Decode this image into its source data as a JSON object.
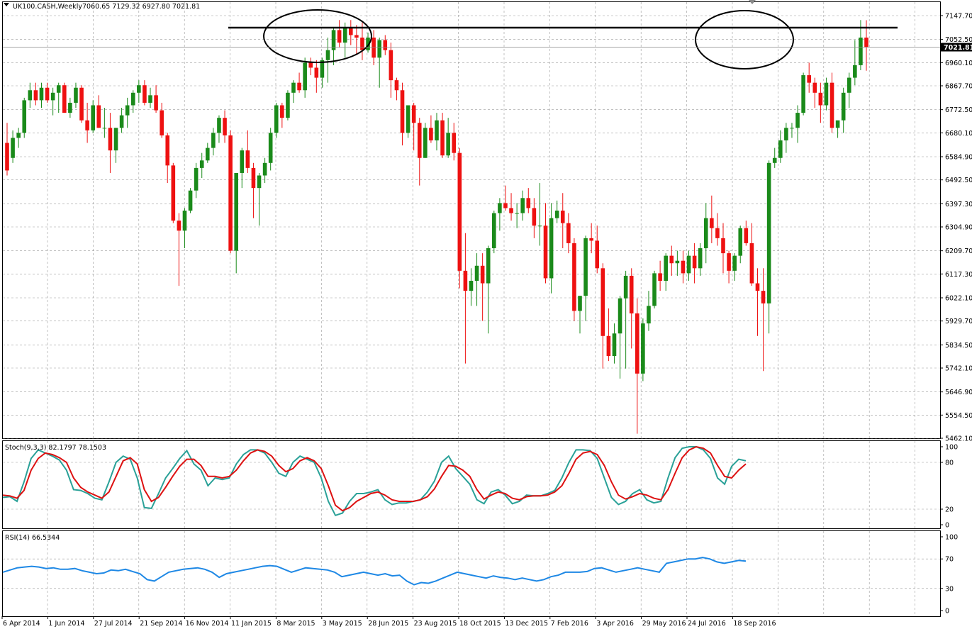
{
  "header": {
    "symbol": "UK100.CASH,Weekly",
    "ohlc": "7060.65 7129.32 6927.80 7021.81",
    "stoch_label": "Stoch(9,3,3) 82.1797 78.1503",
    "rsi_label": "RSI(14) 66.5344",
    "last_price_tag": "7021.81"
  },
  "colors": {
    "bull": "#1a8a1a",
    "bear": "#ee1111",
    "stoch_main": "#2aa198",
    "stoch_signal": "#dd1111",
    "rsi": "#1e88e5",
    "grid": "#9a9a9a"
  },
  "chart_data": [
    {
      "type": "candlestick",
      "title": "UK100.CASH,Weekly",
      "ylim": [
        5462.1,
        7147.7
      ],
      "y_ticks": [
        "7147.70",
        "7052.50",
        "6960.10",
        "6867.70",
        "6772.50",
        "6680.10",
        "6584.90",
        "6492.50",
        "6397.30",
        "6304.90",
        "6209.70",
        "6117.30",
        "6022.10",
        "5929.70",
        "5834.50",
        "5742.10",
        "5646.90",
        "5554.50",
        "5462.10"
      ],
      "x_ticks": [
        "6 Apr 2014",
        "1 Jun 2014",
        "27 Jul 2014",
        "21 Sep 2014",
        "16 Nov 2014",
        "11 Jan 2015",
        "8 Mar 2015",
        "3 May 2015",
        "28 Jun 2015",
        "23 Aug 2015",
        "18 Oct 2015",
        "13 Dec 2015",
        "7 Feb 2016",
        "3 Apr 2016",
        "29 May 2016",
        "24 Jul 2016",
        "18 Sep 2016"
      ],
      "current_price": 7021.81,
      "resistance_level": 7100,
      "candles": [
        [
          6640,
          6720,
          6510,
          6530
        ],
        [
          6580,
          6690,
          6560,
          6660
        ],
        [
          6660,
          6700,
          6620,
          6680
        ],
        [
          6680,
          6820,
          6660,
          6810
        ],
        [
          6810,
          6880,
          6780,
          6850
        ],
        [
          6850,
          6880,
          6790,
          6810
        ],
        [
          6810,
          6880,
          6780,
          6860
        ],
        [
          6860,
          6880,
          6800,
          6810
        ],
        [
          6810,
          6860,
          6750,
          6840
        ],
        [
          6840,
          6880,
          6760,
          6870
        ],
        [
          6870,
          6880,
          6760,
          6760
        ],
        [
          6760,
          6820,
          6740,
          6800
        ],
        [
          6800,
          6880,
          6780,
          6860
        ],
        [
          6860,
          6870,
          6720,
          6730
        ],
        [
          6730,
          6800,
          6640,
          6690
        ],
        [
          6690,
          6810,
          6680,
          6790
        ],
        [
          6790,
          6830,
          6700,
          6700
        ],
        [
          6700,
          6780,
          6660,
          6700
        ],
        [
          6700,
          6760,
          6520,
          6610
        ],
        [
          6610,
          6700,
          6560,
          6700
        ],
        [
          6700,
          6780,
          6680,
          6750
        ],
        [
          6750,
          6820,
          6700,
          6790
        ],
        [
          6790,
          6850,
          6760,
          6840
        ],
        [
          6840,
          6890,
          6800,
          6870
        ],
        [
          6870,
          6890,
          6790,
          6800
        ],
        [
          6800,
          6860,
          6780,
          6830
        ],
        [
          6830,
          6870,
          6760,
          6770
        ],
        [
          6770,
          6800,
          6660,
          6670
        ],
        [
          6670,
          6680,
          6480,
          6550
        ],
        [
          6550,
          6560,
          6320,
          6330
        ],
        [
          6330,
          6360,
          6070,
          6290
        ],
        [
          6290,
          6380,
          6220,
          6370
        ],
        [
          6370,
          6460,
          6360,
          6450
        ],
        [
          6450,
          6560,
          6420,
          6540
        ],
        [
          6540,
          6600,
          6500,
          6570
        ],
        [
          6570,
          6640,
          6560,
          6620
        ],
        [
          6620,
          6700,
          6590,
          6680
        ],
        [
          6680,
          6750,
          6640,
          6740
        ],
        [
          6740,
          6770,
          6640,
          6670
        ],
        [
          6670,
          6690,
          6200,
          6210
        ],
        [
          6210,
          6520,
          6120,
          6520
        ],
        [
          6520,
          6620,
          6460,
          6610
        ],
        [
          6610,
          6690,
          6520,
          6540
        ],
        [
          6540,
          6560,
          6340,
          6460
        ],
        [
          6460,
          6520,
          6310,
          6510
        ],
        [
          6510,
          6580,
          6480,
          6560
        ],
        [
          6560,
          6700,
          6530,
          6680
        ],
        [
          6680,
          6800,
          6660,
          6790
        ],
        [
          6790,
          6800,
          6700,
          6740
        ],
        [
          6740,
          6850,
          6730,
          6840
        ],
        [
          6840,
          6890,
          6800,
          6880
        ],
        [
          6880,
          6920,
          6840,
          6850
        ],
        [
          6850,
          6980,
          6820,
          6960
        ],
        [
          6960,
          6980,
          6910,
          6940
        ],
        [
          6940,
          6970,
          6840,
          6900
        ],
        [
          6900,
          6980,
          6860,
          6970
        ],
        [
          6970,
          7060,
          6880,
          7010
        ],
        [
          7010,
          7100,
          6950,
          7090
        ],
        [
          7090,
          7130,
          7020,
          7040
        ],
        [
          7040,
          7120,
          6980,
          7100
        ],
        [
          7100,
          7130,
          7030,
          7070
        ],
        [
          7070,
          7110,
          6990,
          7060
        ],
        [
          7060,
          7120,
          6970,
          7010
        ],
        [
          7010,
          7080,
          7000,
          7060
        ],
        [
          7060,
          7090,
          6950,
          6980
        ],
        [
          6980,
          7060,
          6860,
          7050
        ],
        [
          7050,
          7070,
          6990,
          7010
        ],
        [
          7010,
          7040,
          6820,
          6890
        ],
        [
          6890,
          6900,
          6810,
          6850
        ],
        [
          6850,
          6880,
          6630,
          6680
        ],
        [
          6680,
          6790,
          6660,
          6790
        ],
        [
          6790,
          6800,
          6610,
          6720
        ],
        [
          6720,
          6740,
          6470,
          6580
        ],
        [
          6580,
          6720,
          6580,
          6700
        ],
        [
          6700,
          6750,
          6640,
          6650
        ],
        [
          6650,
          6760,
          6610,
          6730
        ],
        [
          6730,
          6760,
          6580,
          6590
        ],
        [
          6590,
          6740,
          6580,
          6680
        ],
        [
          6680,
          6720,
          6570,
          6600
        ],
        [
          6600,
          6620,
          6060,
          6130
        ],
        [
          6130,
          6280,
          5760,
          6050
        ],
        [
          6050,
          6140,
          5990,
          6090
        ],
        [
          6090,
          6200,
          5990,
          6150
        ],
        [
          6150,
          6200,
          5930,
          6080
        ],
        [
          6080,
          6230,
          5880,
          6220
        ],
        [
          6220,
          6370,
          6200,
          6360
        ],
        [
          6360,
          6420,
          6290,
          6400
        ],
        [
          6400,
          6470,
          6370,
          6380
        ],
        [
          6380,
          6440,
          6330,
          6360
        ],
        [
          6360,
          6400,
          6300,
          6360
        ],
        [
          6360,
          6450,
          6330,
          6420
        ],
        [
          6420,
          6460,
          6360,
          6380
        ],
        [
          6380,
          6420,
          6260,
          6310
        ],
        [
          6310,
          6480,
          6230,
          6310
        ],
        [
          6310,
          6400,
          6080,
          6100
        ],
        [
          6100,
          6400,
          6040,
          6340
        ],
        [
          6340,
          6410,
          6320,
          6370
        ],
        [
          6370,
          6440,
          6220,
          6320
        ],
        [
          6320,
          6360,
          6200,
          6240
        ],
        [
          6240,
          6260,
          5930,
          5970
        ],
        [
          5970,
          6030,
          5880,
          6030
        ],
        [
          6030,
          6270,
          5930,
          6260
        ],
        [
          6260,
          6320,
          6200,
          6250
        ],
        [
          6250,
          6310,
          6120,
          6140
        ],
        [
          6140,
          6160,
          5740,
          5870
        ],
        [
          5870,
          5980,
          5770,
          5790
        ],
        [
          5790,
          5920,
          5760,
          5880
        ],
        [
          5880,
          6030,
          5700,
          6020
        ],
        [
          6020,
          6130,
          5740,
          6110
        ],
        [
          6110,
          6140,
          5820,
          5960
        ],
        [
          5960,
          6020,
          5480,
          5720
        ],
        [
          5720,
          5940,
          5690,
          5920
        ],
        [
          5920,
          6050,
          5890,
          5990
        ],
        [
          5990,
          6130,
          5980,
          6120
        ],
        [
          6120,
          6170,
          6050,
          6090
        ],
        [
          6090,
          6200,
          6050,
          6190
        ],
        [
          6190,
          6230,
          6110,
          6160
        ],
        [
          6160,
          6210,
          6110,
          6170
        ],
        [
          6170,
          6210,
          6080,
          6120
        ],
        [
          6120,
          6210,
          6090,
          6190
        ],
        [
          6190,
          6240,
          6080,
          6140
        ],
        [
          6140,
          6240,
          6110,
          6220
        ],
        [
          6220,
          6400,
          6160,
          6340
        ],
        [
          6340,
          6430,
          6240,
          6300
        ],
        [
          6300,
          6360,
          6230,
          6260
        ],
        [
          6260,
          6320,
          6120,
          6200
        ],
        [
          6200,
          6210,
          6080,
          6130
        ],
        [
          6130,
          6200,
          6090,
          6190
        ],
        [
          6190,
          6310,
          6160,
          6300
        ],
        [
          6300,
          6330,
          6230,
          6240
        ],
        [
          6240,
          6320,
          6070,
          6080
        ],
        [
          6080,
          6140,
          5870,
          6050
        ],
        [
          6050,
          6140,
          5730,
          6000
        ],
        [
          6000,
          6570,
          5880,
          6560
        ],
        [
          6560,
          6620,
          6540,
          6580
        ],
        [
          6580,
          6690,
          6560,
          6650
        ],
        [
          6650,
          6720,
          6600,
          6700
        ],
        [
          6700,
          6720,
          6660,
          6700
        ],
        [
          6700,
          6790,
          6640,
          6760
        ],
        [
          6760,
          6920,
          6750,
          6910
        ],
        [
          6910,
          6960,
          6840,
          6880
        ],
        [
          6880,
          6900,
          6780,
          6840
        ],
        [
          6840,
          6880,
          6720,
          6790
        ],
        [
          6790,
          6900,
          6770,
          6880
        ],
        [
          6880,
          6920,
          6680,
          6700
        ],
        [
          6700,
          6720,
          6660,
          6730
        ],
        [
          6730,
          6860,
          6680,
          6840
        ],
        [
          6840,
          6920,
          6780,
          6900
        ],
        [
          6900,
          7050,
          6870,
          6950
        ],
        [
          6950,
          7130,
          6930,
          7060
        ],
        [
          7060,
          7129.32,
          6927.8,
          7021.81
        ]
      ]
    },
    {
      "type": "line",
      "title": "Stoch(9,3,3) 82.1797 78.1503",
      "ylim": [
        0,
        100
      ],
      "y_ticks": [
        "100",
        "80",
        "20",
        "0"
      ],
      "series": [
        {
          "values": [
            35,
            36,
            30,
            55,
            85,
            96,
            92,
            88,
            83,
            70,
            45,
            44,
            40,
            34,
            32,
            55,
            80,
            88,
            84,
            60,
            22,
            21,
            40,
            60,
            72,
            85,
            95,
            78,
            70,
            50,
            60,
            58,
            60,
            78,
            90,
            96,
            96,
            92,
            80,
            66,
            62,
            80,
            88,
            84,
            80,
            60,
            30,
            12,
            15,
            30,
            40,
            40,
            42,
            45,
            32,
            26,
            28,
            28,
            30,
            32,
            42,
            56,
            80,
            88,
            72,
            62,
            52,
            32,
            27,
            42,
            45,
            38,
            27,
            30,
            38,
            37,
            37,
            40,
            44,
            60,
            80,
            96,
            96,
            95,
            85,
            60,
            35,
            26,
            30,
            40,
            45,
            32,
            28,
            30,
            60,
            86,
            98,
            100,
            100,
            96,
            85,
            60,
            52,
            75,
            84,
            82
          ]
        },
        {
          "values": [
            38,
            37,
            34,
            44,
            70,
            85,
            92,
            90,
            86,
            80,
            60,
            48,
            42,
            38,
            34,
            42,
            62,
            82,
            86,
            78,
            45,
            30,
            35,
            48,
            62,
            75,
            84,
            84,
            76,
            62,
            62,
            60,
            62,
            70,
            82,
            92,
            96,
            94,
            88,
            76,
            68,
            72,
            82,
            86,
            82,
            72,
            50,
            25,
            18,
            22,
            30,
            35,
            40,
            42,
            38,
            32,
            30,
            30,
            30,
            32,
            36,
            46,
            62,
            76,
            75,
            70,
            62,
            45,
            33,
            38,
            42,
            40,
            34,
            32,
            36,
            37,
            37,
            38,
            42,
            50,
            66,
            84,
            92,
            94,
            90,
            76,
            55,
            38,
            33,
            36,
            40,
            38,
            34,
            32,
            45,
            66,
            86,
            96,
            100,
            98,
            92,
            76,
            62,
            60,
            70,
            78
          ]
        }
      ]
    },
    {
      "type": "line",
      "title": "RSI(14) 66.5344",
      "ylim": [
        0,
        100
      ],
      "y_ticks": [
        "100",
        "70",
        "30",
        "0"
      ],
      "series": [
        {
          "values": [
            52,
            55,
            58,
            59,
            60,
            59,
            57,
            58,
            56,
            56,
            57,
            54,
            52,
            50,
            51,
            55,
            54,
            56,
            53,
            50,
            42,
            40,
            46,
            52,
            54,
            56,
            57,
            58,
            56,
            52,
            45,
            50,
            52,
            54,
            56,
            58,
            60,
            61,
            60,
            56,
            52,
            55,
            58,
            57,
            56,
            55,
            52,
            46,
            48,
            50,
            52,
            50,
            48,
            50,
            47,
            48,
            40,
            35,
            38,
            37,
            40,
            44,
            48,
            52,
            50,
            48,
            46,
            44,
            47,
            45,
            44,
            42,
            44,
            42,
            40,
            42,
            46,
            48,
            52,
            52,
            52,
            53,
            57,
            58,
            55,
            52,
            54,
            56,
            58,
            56,
            54,
            52,
            64,
            66,
            68,
            70,
            70,
            72,
            70,
            66,
            64,
            66,
            68,
            67
          ]
        }
      ]
    }
  ]
}
